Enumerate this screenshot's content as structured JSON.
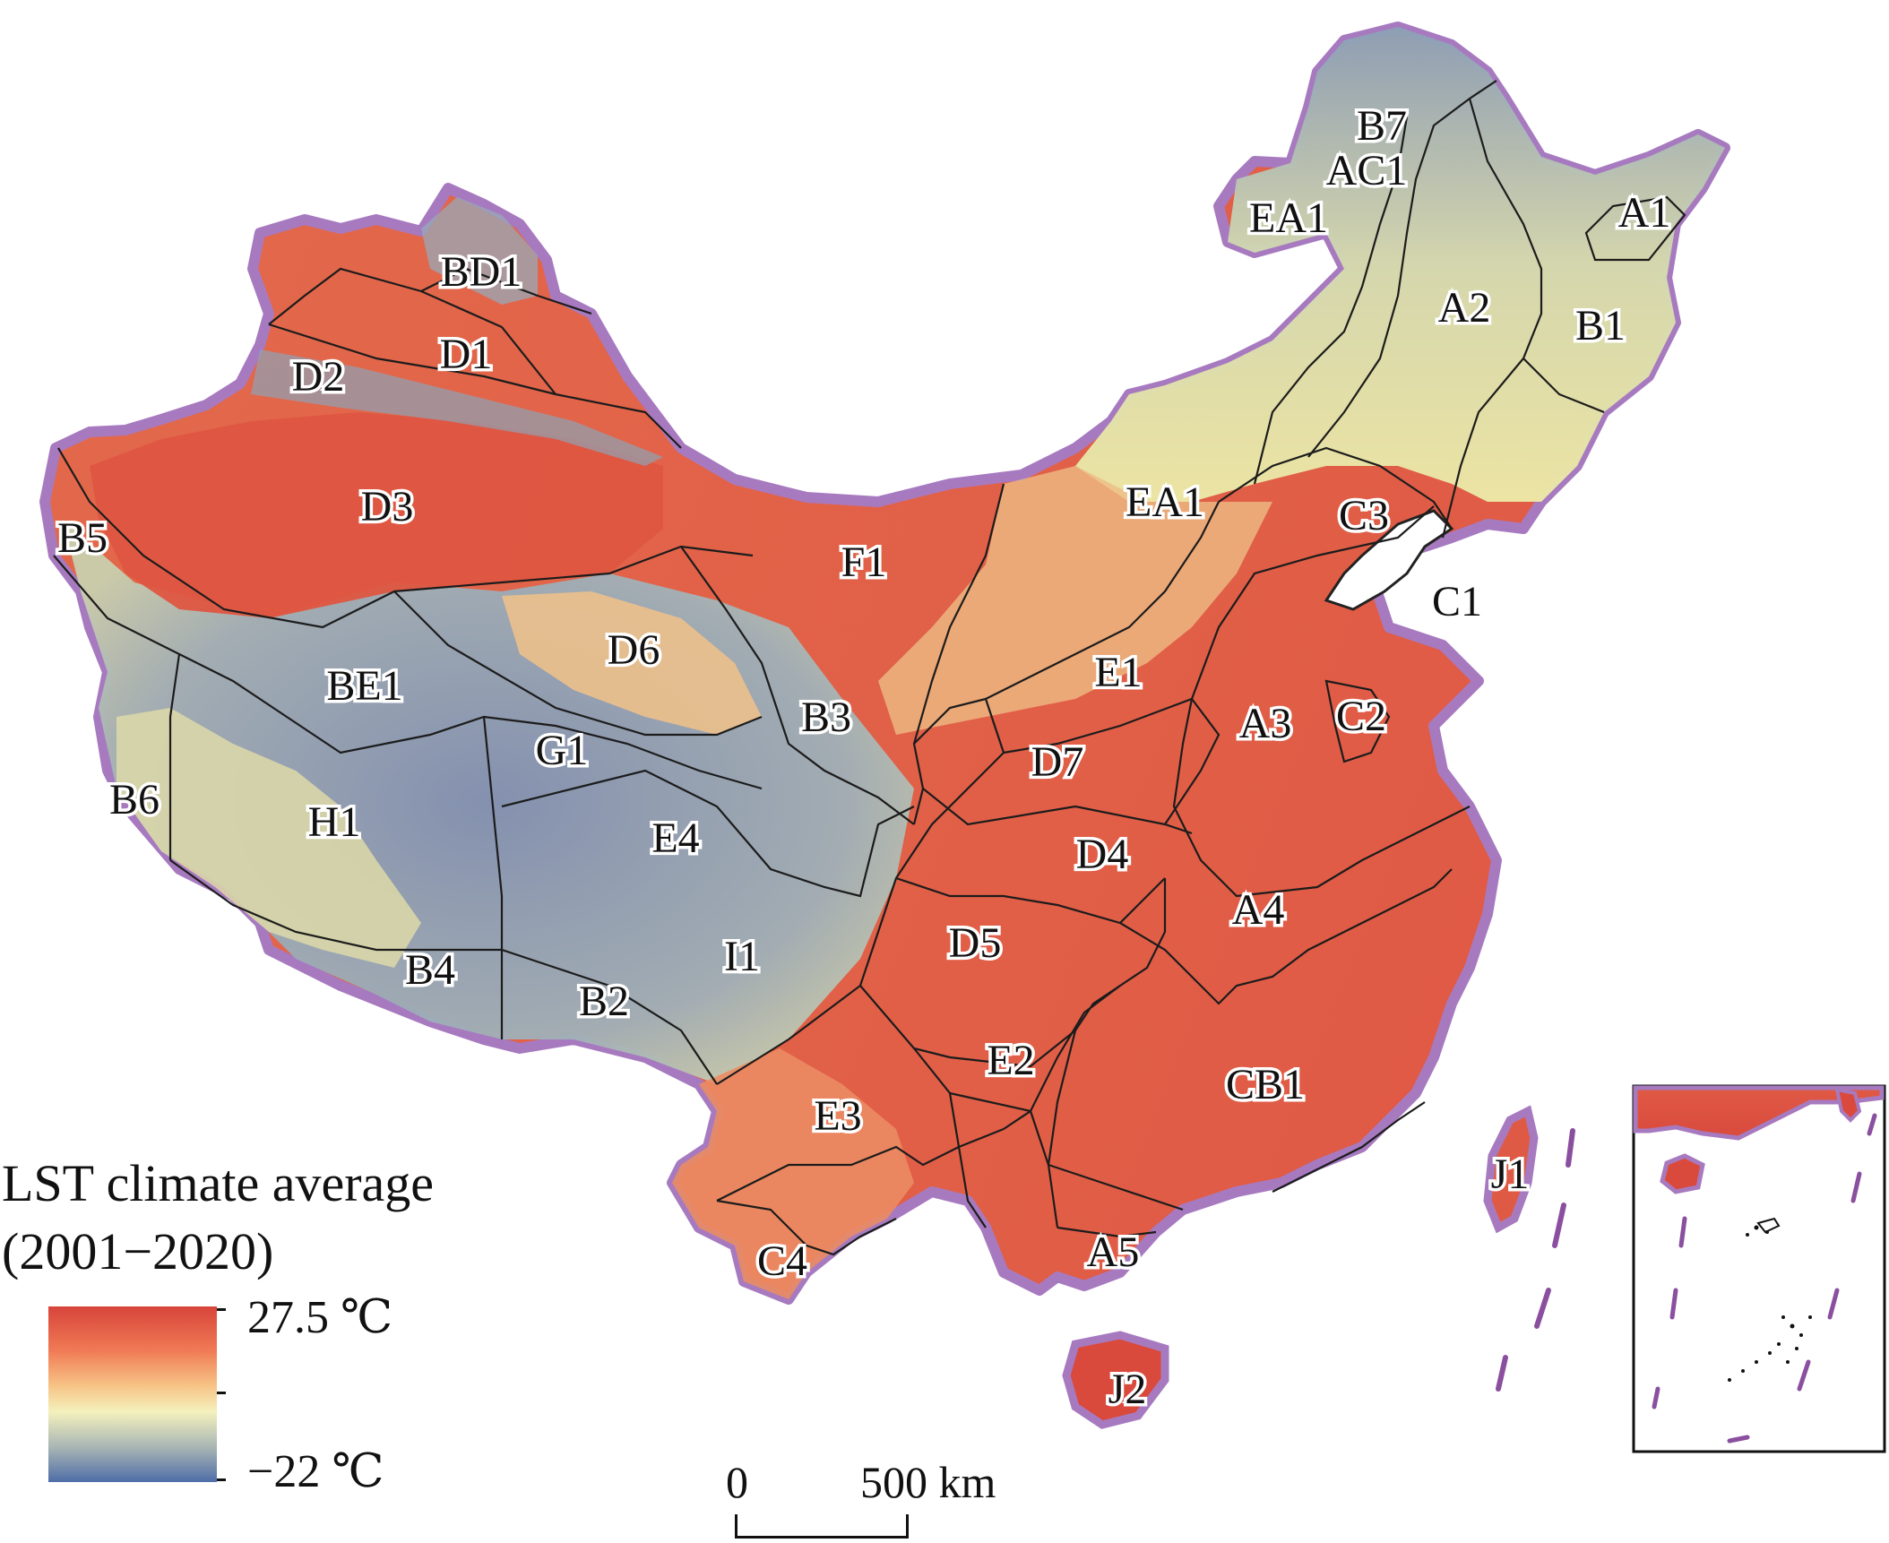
{
  "legend": {
    "title_line1": "LST climate average",
    "title_line2": "(2001−2020)",
    "max_label": "27.5 ℃",
    "min_label": "−22 ℃",
    "max_value": 27.5,
    "min_value": -22,
    "colors": [
      "#d7443a",
      "#f07a55",
      "#f7c385",
      "#f4f1bd",
      "#a9b6b4",
      "#4f6ea8"
    ]
  },
  "scale_bar": {
    "start_label": "0",
    "end_label": "500 km",
    "length_km": 500
  },
  "regions": [
    {
      "code": "B7",
      "name": "B7"
    },
    {
      "code": "AC1",
      "name": "AC1"
    },
    {
      "code": "EA1",
      "name": "EA1"
    },
    {
      "code": "A1",
      "name": "A1"
    },
    {
      "code": "BD1",
      "name": "BD1"
    },
    {
      "code": "A2",
      "name": "A2"
    },
    {
      "code": "B1",
      "name": "B1"
    },
    {
      "code": "D1",
      "name": "D1"
    },
    {
      "code": "D2",
      "name": "D2"
    },
    {
      "code": "D3",
      "name": "D3"
    },
    {
      "code": "EA1b",
      "name": "EA1"
    },
    {
      "code": "C3",
      "name": "C3"
    },
    {
      "code": "B5",
      "name": "B5"
    },
    {
      "code": "F1",
      "name": "F1"
    },
    {
      "code": "C1",
      "name": "C1"
    },
    {
      "code": "D6",
      "name": "D6"
    },
    {
      "code": "E1",
      "name": "E1"
    },
    {
      "code": "BE1",
      "name": "BE1"
    },
    {
      "code": "B3",
      "name": "B3"
    },
    {
      "code": "A3",
      "name": "A3"
    },
    {
      "code": "C2",
      "name": "C2"
    },
    {
      "code": "G1",
      "name": "G1"
    },
    {
      "code": "D7",
      "name": "D7"
    },
    {
      "code": "B6",
      "name": "B6"
    },
    {
      "code": "H1",
      "name": "H1"
    },
    {
      "code": "E4",
      "name": "E4"
    },
    {
      "code": "D4",
      "name": "D4"
    },
    {
      "code": "A4",
      "name": "A4"
    },
    {
      "code": "D5",
      "name": "D5"
    },
    {
      "code": "B4",
      "name": "B4"
    },
    {
      "code": "I1",
      "name": "I1"
    },
    {
      "code": "B2",
      "name": "B2"
    },
    {
      "code": "E2",
      "name": "E2"
    },
    {
      "code": "CB1",
      "name": "CB1"
    },
    {
      "code": "E3",
      "name": "E3"
    },
    {
      "code": "J1",
      "name": "J1"
    },
    {
      "code": "A5",
      "name": "A5"
    },
    {
      "code": "C4",
      "name": "C4"
    },
    {
      "code": "J2",
      "name": "J2"
    }
  ]
}
